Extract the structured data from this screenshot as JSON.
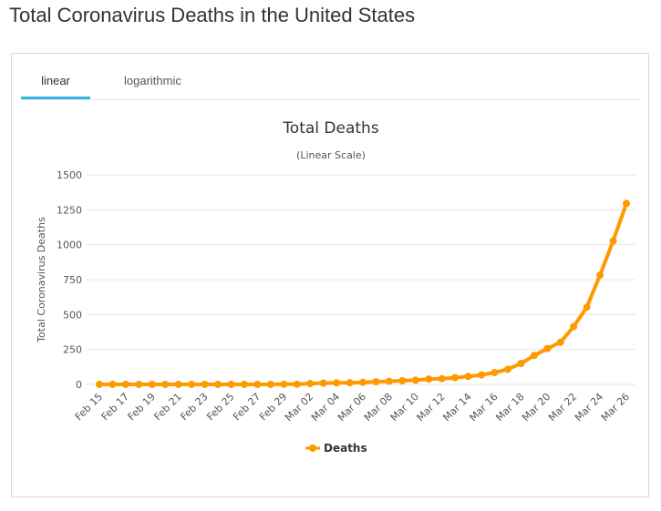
{
  "page": {
    "title": "Total Coronavirus Deaths in the United States"
  },
  "tabs": [
    {
      "label": "linear",
      "active": true
    },
    {
      "label": "logarithmic",
      "active": false
    }
  ],
  "colors": {
    "series": "#ff9900",
    "tab_accent": "#33b5e5"
  },
  "chart_data": {
    "type": "line",
    "title": "Total Deaths",
    "subtitle": "(Linear Scale)",
    "xlabel": "",
    "ylabel": "Total Coronavirus Deaths",
    "ylim": [
      0,
      1500
    ],
    "yticks": [
      0,
      250,
      500,
      750,
      1000,
      1250,
      1500
    ],
    "grid": true,
    "legend": "bottom-center",
    "x": [
      "Feb 15",
      "Feb 16",
      "Feb 17",
      "Feb 18",
      "Feb 19",
      "Feb 20",
      "Feb 21",
      "Feb 22",
      "Feb 23",
      "Feb 24",
      "Feb 25",
      "Feb 26",
      "Feb 27",
      "Feb 28",
      "Feb 29",
      "Mar 01",
      "Mar 02",
      "Mar 03",
      "Mar 04",
      "Mar 05",
      "Mar 06",
      "Mar 07",
      "Mar 08",
      "Mar 09",
      "Mar 10",
      "Mar 11",
      "Mar 12",
      "Mar 13",
      "Mar 14",
      "Mar 15",
      "Mar 16",
      "Mar 17",
      "Mar 18",
      "Mar 19",
      "Mar 20",
      "Mar 21",
      "Mar 22",
      "Mar 23",
      "Mar 24",
      "Mar 25",
      "Mar 26"
    ],
    "xtick_labels": [
      "Feb 15",
      "Feb 17",
      "Feb 19",
      "Feb 21",
      "Feb 23",
      "Feb 25",
      "Feb 27",
      "Feb 29",
      "Mar 02",
      "Mar 04",
      "Mar 06",
      "Mar 08",
      "Mar 10",
      "Mar 12",
      "Mar 14",
      "Mar 16",
      "Mar 18",
      "Mar 20",
      "Mar 22",
      "Mar 24",
      "Mar 26"
    ],
    "series": [
      {
        "name": "Deaths",
        "values": [
          0,
          0,
          0,
          0,
          0,
          0,
          0,
          0,
          0,
          0,
          0,
          0,
          0,
          0,
          1,
          1,
          6,
          9,
          11,
          12,
          15,
          19,
          22,
          26,
          30,
          38,
          41,
          48,
          57,
          68,
          85,
          108,
          150,
          207,
          256,
          302,
          414,
          553,
          782,
          1027,
          1295
        ]
      }
    ]
  }
}
